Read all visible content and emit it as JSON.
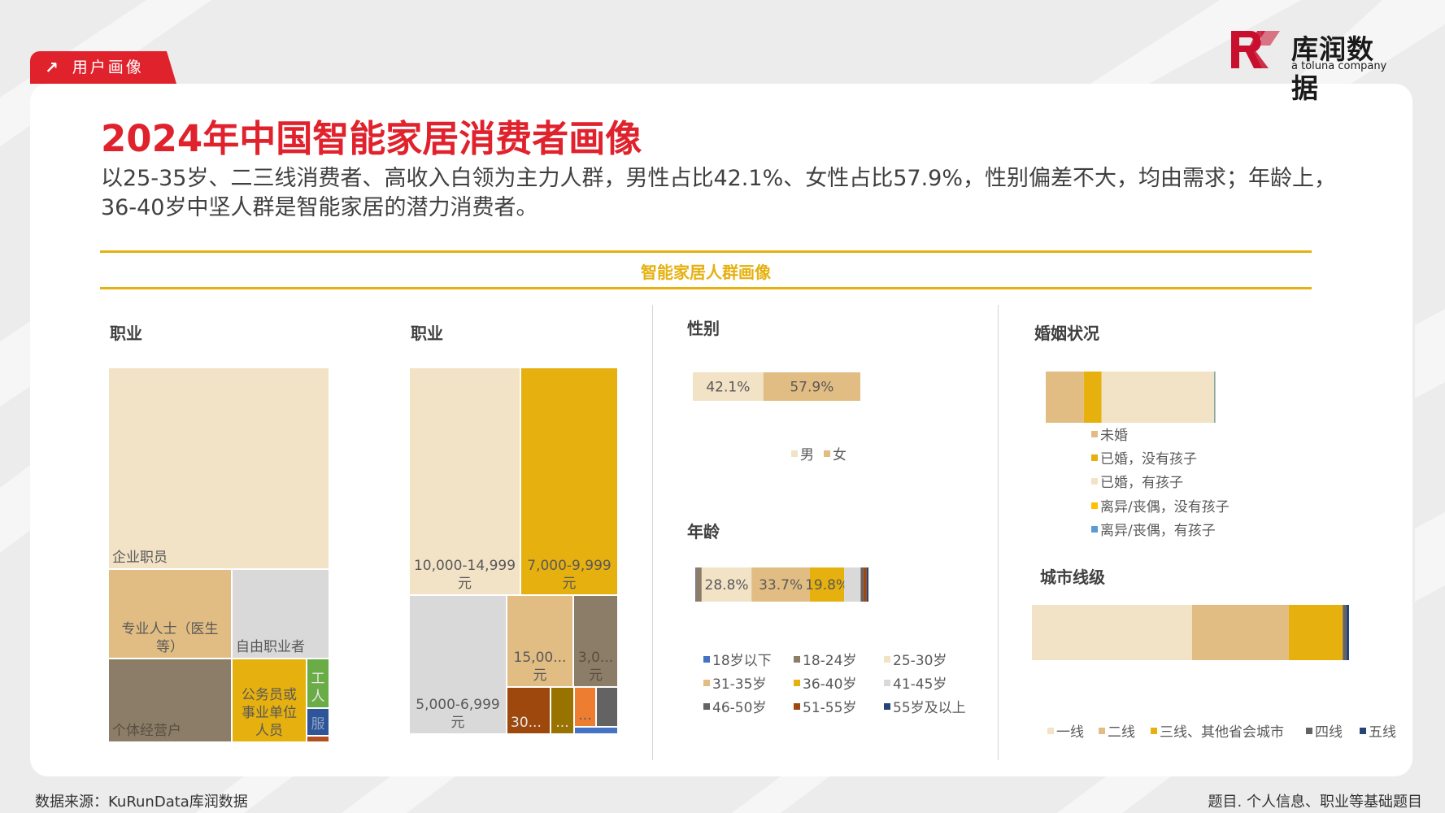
{
  "header": {
    "section_tag": "用户画像",
    "logo_cn": "库润数据",
    "logo_en": "a toluna company"
  },
  "title": "2024年中国智能家居消费者画像",
  "subtitle": "以25-35岁、二三线消费者、高收入白领为主力人群，男性占比42.1%、女性占比57.9%，性别偏差不大，均由需求；年龄上，36-40岁中坚人群是智能家居的潜力消费者。",
  "band_title": "智能家居人群画像",
  "footer": {
    "source": "数据来源：KuRunData库润数据",
    "note": "题目. 个人信息、职业等基础题目"
  },
  "colors": {
    "accent_red": "#e0222d",
    "gold": "#e6b00e",
    "cream": "#f2e2c6",
    "tan": "#e2bd83",
    "grey_light": "#d9d9d9",
    "taupe": "#8c7d69"
  },
  "chart_data": [
    {
      "type": "treemap",
      "title": "职业",
      "items": [
        {
          "label": "企业职员",
          "color": "#f2e2c6"
        },
        {
          "label": "专业人士（医生等）",
          "color": "#e2bd83"
        },
        {
          "label": "自由职业者",
          "color": "#d9d9d9"
        },
        {
          "label": "个体经营户",
          "color": "#8c7d69"
        },
        {
          "label": "公务员或事业单位人员",
          "color": "#e6b00e"
        },
        {
          "label": "工人",
          "color": "#6aac46"
        },
        {
          "label": "服",
          "color": "#2e5597"
        },
        {
          "label": "",
          "color": "#b4501e"
        }
      ]
    },
    {
      "type": "treemap",
      "title": "职业",
      "items": [
        {
          "label": "10,000-14,999元",
          "color": "#f2e2c6"
        },
        {
          "label": "7,000-9,999元",
          "color": "#e6b00e"
        },
        {
          "label": "5,000-6,999元",
          "color": "#d9d9d9"
        },
        {
          "label": "15,00...元",
          "color": "#e2bd83"
        },
        {
          "label": "3,0...元",
          "color": "#8c7d69"
        },
        {
          "label": "30...",
          "color": "#9e480e"
        },
        {
          "label": "...",
          "color": "#997300"
        },
        {
          "label": "...",
          "color": "#ed7d31"
        },
        {
          "label": "",
          "color": "#636363"
        },
        {
          "label": "",
          "color": "#4472c4"
        }
      ]
    },
    {
      "type": "bar",
      "stacked": true,
      "orientation": "horizontal",
      "title": "性别",
      "series": [
        {
          "name": "男",
          "values": [
            42.1
          ],
          "label": "42.1%",
          "color": "#f2e2c6"
        },
        {
          "name": "女",
          "values": [
            57.9
          ],
          "label": "57.9%",
          "color": "#e2bd83"
        }
      ],
      "legend_position": "bottom"
    },
    {
      "type": "bar",
      "stacked": true,
      "orientation": "horizontal",
      "title": "年龄",
      "series": [
        {
          "name": "18岁以下",
          "values": [
            0.2
          ],
          "label": "",
          "color": "#4472c4"
        },
        {
          "name": "18-24岁",
          "values": [
            3.5
          ],
          "label": "",
          "color": "#8c7d69"
        },
        {
          "name": "25-30岁",
          "values": [
            28.8
          ],
          "label": "28.8%",
          "color": "#f2e2c6"
        },
        {
          "name": "31-35岁",
          "values": [
            33.7
          ],
          "label": "33.7%",
          "color": "#e2bd83"
        },
        {
          "name": "36-40岁",
          "values": [
            19.8
          ],
          "label": "19.8%",
          "color": "#e6b00e"
        },
        {
          "name": "41-45岁",
          "values": [
            9.5
          ],
          "label": "",
          "color": "#d9d9d9"
        },
        {
          "name": "46-50岁",
          "values": [
            1.5
          ],
          "label": "",
          "color": "#636363"
        },
        {
          "name": "51-55岁",
          "values": [
            2.0
          ],
          "label": "",
          "color": "#9e480e"
        },
        {
          "name": "55岁及以上",
          "values": [
            1.0
          ],
          "label": "",
          "color": "#264478"
        }
      ],
      "legend_position": "bottom"
    },
    {
      "type": "bar",
      "stacked": true,
      "orientation": "horizontal",
      "title": "婚姻状况",
      "series": [
        {
          "name": "未婚",
          "values": [
            22.5
          ],
          "color": "#e2bd83"
        },
        {
          "name": "已婚，没有孩子",
          "values": [
            10.5
          ],
          "color": "#e6b00e"
        },
        {
          "name": "已婚，有孩子",
          "values": [
            66.5
          ],
          "color": "#f2e2c6"
        },
        {
          "name": "离异/丧偶，没有孩子",
          "values": [
            0.2
          ],
          "color": "#ffc000"
        },
        {
          "name": "离异/丧偶，有孩子",
          "values": [
            0.3
          ],
          "color": "#5b9bd5"
        }
      ],
      "legend_position": "bottom"
    },
    {
      "type": "bar",
      "stacked": true,
      "orientation": "horizontal",
      "title": "城市线级",
      "series": [
        {
          "name": "一线",
          "values": [
            50.5
          ],
          "color": "#f2e2c6"
        },
        {
          "name": "二线",
          "values": [
            30.5
          ],
          "color": "#e2bd83"
        },
        {
          "name": "三线、其他省会城市",
          "values": [
            17.0
          ],
          "color": "#e6b00e"
        },
        {
          "name": "四线",
          "values": [
            1.2
          ],
          "color": "#636363"
        },
        {
          "name": "五线",
          "values": [
            0.8
          ],
          "color": "#264478"
        }
      ],
      "legend_position": "bottom"
    }
  ]
}
